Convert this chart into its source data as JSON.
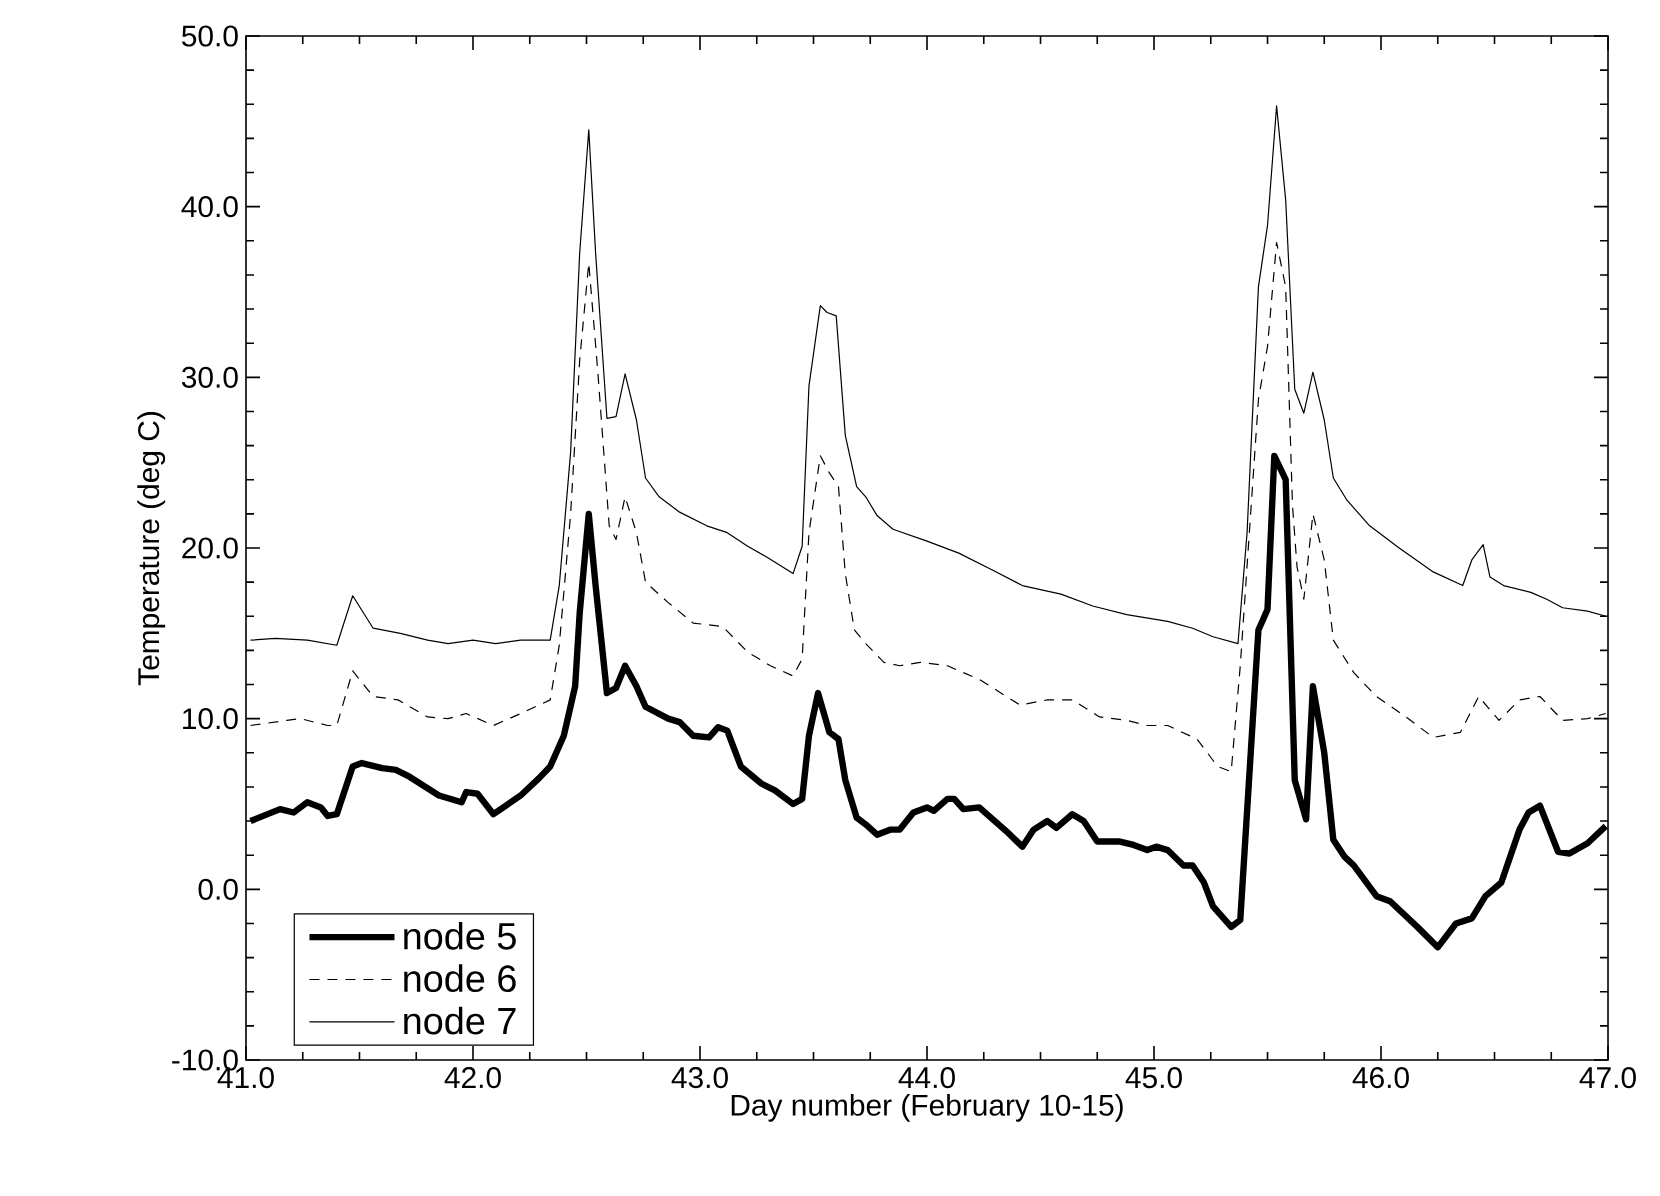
{
  "chart_data": {
    "type": "line",
    "xlabel": "Day number (February 10-15)",
    "ylabel": "Temperature (deg C)",
    "xlim": [
      41,
      47
    ],
    "ylim": [
      -10,
      50
    ],
    "xticks": [
      {
        "value": 41,
        "label": "41.0"
      },
      {
        "value": 42,
        "label": "42.0"
      },
      {
        "value": 43,
        "label": "43.0"
      },
      {
        "value": 44,
        "label": "44.0"
      },
      {
        "value": 45,
        "label": "45.0"
      },
      {
        "value": 46,
        "label": "46.0"
      },
      {
        "value": 47,
        "label": "47.0"
      }
    ],
    "yticks": [
      {
        "value": -10,
        "label": "-10.0"
      },
      {
        "value": 0,
        "label": "0.0"
      },
      {
        "value": 10,
        "label": "10.0"
      },
      {
        "value": 20,
        "label": "20.0"
      },
      {
        "value": 30,
        "label": "30.0"
      },
      {
        "value": 40,
        "label": "40.0"
      },
      {
        "value": 50,
        "label": "50.0"
      }
    ],
    "grid": false,
    "legend": "bottom left",
    "marker": "none",
    "series": [
      {
        "name": "node 5",
        "color": "#000000",
        "line_style": "solid",
        "x": [
          41.02,
          41.15,
          41.21,
          41.27,
          41.33,
          41.36,
          41.4,
          41.47,
          41.51,
          41.6,
          41.66,
          41.72,
          41.85,
          41.95,
          41.97,
          42.02,
          42.09,
          42.21,
          42.29,
          42.34,
          42.4,
          42.45,
          42.47,
          42.51,
          42.54,
          42.59,
          42.63,
          42.67,
          42.72,
          42.76,
          42.86,
          42.91,
          42.97,
          43.04,
          43.08,
          43.12,
          43.18,
          43.27,
          43.33,
          43.41,
          43.45,
          43.48,
          43.52,
          43.57,
          43.61,
          43.64,
          43.69,
          43.73,
          43.78,
          43.84,
          43.88,
          43.94,
          44.0,
          44.03,
          44.09,
          44.12,
          44.16,
          44.23,
          44.29,
          44.35,
          44.42,
          44.47,
          44.53,
          44.57,
          44.64,
          44.69,
          44.75,
          44.85,
          44.91,
          44.97,
          45.01,
          45.06,
          45.13,
          45.17,
          45.22,
          45.26,
          45.34,
          45.38,
          45.46,
          45.5,
          45.53,
          45.58,
          45.62,
          45.67,
          45.7,
          45.75,
          45.79,
          45.84,
          45.88,
          45.98,
          46.04,
          46.16,
          46.25,
          46.33,
          46.4,
          46.46,
          46.53,
          46.61,
          46.65,
          46.7,
          46.78,
          46.83,
          46.91,
          46.99
        ],
        "values": [
          4.0,
          4.7,
          4.5,
          5.1,
          4.8,
          4.3,
          4.4,
          7.2,
          7.4,
          7.1,
          7.0,
          6.6,
          5.5,
          5.1,
          5.7,
          5.6,
          4.4,
          5.5,
          6.5,
          7.2,
          9.0,
          11.9,
          16.2,
          22.0,
          17.8,
          11.5,
          11.8,
          13.1,
          11.9,
          10.7,
          10.0,
          9.8,
          9.0,
          8.9,
          9.5,
          9.3,
          7.2,
          6.2,
          5.8,
          5.0,
          5.3,
          9.0,
          11.5,
          9.2,
          8.8,
          6.4,
          4.2,
          3.8,
          3.2,
          3.5,
          3.5,
          4.5,
          4.8,
          4.6,
          5.3,
          5.3,
          4.7,
          4.8,
          4.1,
          3.4,
          2.5,
          3.5,
          4.0,
          3.6,
          4.4,
          4.0,
          2.8,
          2.8,
          2.6,
          2.3,
          2.5,
          2.3,
          1.4,
          1.4,
          0.4,
          -1.0,
          -2.2,
          -1.8,
          15.2,
          16.4,
          25.4,
          24.0,
          6.4,
          4.1,
          11.9,
          8.0,
          2.9,
          1.9,
          1.4,
          -0.4,
          -0.7,
          -2.2,
          -3.4,
          -2.0,
          -1.7,
          -0.4,
          0.4,
          3.5,
          4.5,
          4.9,
          2.2,
          2.1,
          2.7,
          3.7
        ]
      },
      {
        "name": "node 6",
        "color": "#000000",
        "line_style": "dashed",
        "x": [
          41.02,
          41.18,
          41.24,
          41.36,
          41.4,
          41.47,
          41.56,
          41.67,
          41.8,
          41.89,
          41.97,
          42.09,
          42.21,
          42.34,
          42.38,
          42.43,
          42.47,
          42.51,
          42.55,
          42.6,
          42.63,
          42.67,
          42.72,
          42.76,
          42.86,
          42.97,
          43.1,
          43.21,
          43.31,
          43.41,
          43.45,
          43.48,
          43.53,
          43.57,
          43.61,
          43.64,
          43.68,
          43.73,
          43.81,
          43.88,
          43.97,
          44.09,
          44.23,
          44.41,
          44.53,
          44.64,
          44.76,
          44.88,
          44.97,
          45.06,
          45.19,
          45.28,
          45.34,
          45.38,
          45.46,
          45.5,
          45.54,
          45.58,
          45.61,
          45.63,
          45.66,
          45.7,
          45.75,
          45.79,
          45.88,
          45.98,
          46.11,
          46.23,
          46.35,
          46.43,
          46.52,
          46.61,
          46.7,
          46.8,
          46.91,
          46.99
        ],
        "values": [
          9.6,
          9.9,
          10.0,
          9.6,
          9.6,
          12.8,
          11.3,
          11.1,
          10.1,
          10.0,
          10.3,
          9.6,
          10.3,
          11.1,
          14.3,
          22.0,
          31.0,
          36.7,
          30.3,
          21.3,
          20.5,
          23.0,
          20.9,
          18.0,
          16.8,
          15.6,
          15.4,
          13.9,
          13.1,
          12.5,
          13.5,
          20.9,
          25.4,
          24.4,
          23.6,
          18.5,
          15.2,
          14.4,
          13.3,
          13.1,
          13.3,
          13.1,
          12.3,
          10.8,
          11.1,
          11.1,
          10.1,
          9.9,
          9.6,
          9.6,
          8.8,
          7.2,
          6.9,
          13.1,
          28.7,
          31.8,
          37.9,
          35.3,
          22.5,
          18.9,
          17.0,
          22.0,
          19.3,
          14.6,
          12.7,
          11.3,
          10.1,
          8.9,
          9.2,
          11.3,
          9.9,
          11.1,
          11.3,
          9.9,
          10.0,
          10.3
        ]
      },
      {
        "name": "node 7",
        "color": "#000000",
        "line_style": "solid",
        "x": [
          41.02,
          41.13,
          41.27,
          41.4,
          41.47,
          41.56,
          41.68,
          41.8,
          41.89,
          42.0,
          42.1,
          42.21,
          42.34,
          42.38,
          42.43,
          42.47,
          42.51,
          42.54,
          42.59,
          42.63,
          42.67,
          42.72,
          42.76,
          42.82,
          42.91,
          43.03,
          43.12,
          43.21,
          43.29,
          43.41,
          43.45,
          43.48,
          43.53,
          43.56,
          43.6,
          43.64,
          43.69,
          43.73,
          43.78,
          43.85,
          44.0,
          44.14,
          44.29,
          44.42,
          44.59,
          44.73,
          44.88,
          44.97,
          45.06,
          45.17,
          45.26,
          45.37,
          45.41,
          45.46,
          45.5,
          45.54,
          45.58,
          45.62,
          45.66,
          45.7,
          45.75,
          45.79,
          45.85,
          45.95,
          46.08,
          46.23,
          46.36,
          46.4,
          46.45,
          46.48,
          46.54,
          46.66,
          46.73,
          46.8,
          46.91,
          46.99
        ],
        "values": [
          14.6,
          14.7,
          14.6,
          14.3,
          17.2,
          15.3,
          15.0,
          14.6,
          14.4,
          14.6,
          14.4,
          14.6,
          14.6,
          17.8,
          25.6,
          37.3,
          44.5,
          37.3,
          27.6,
          27.7,
          30.2,
          27.5,
          24.1,
          23.0,
          22.1,
          21.3,
          20.9,
          20.1,
          19.5,
          18.5,
          20.1,
          29.5,
          34.2,
          33.8,
          33.6,
          26.6,
          23.6,
          23.0,
          21.9,
          21.1,
          20.4,
          19.7,
          18.7,
          17.8,
          17.3,
          16.6,
          16.1,
          15.9,
          15.7,
          15.3,
          14.8,
          14.4,
          20.9,
          35.3,
          38.9,
          45.9,
          40.4,
          29.3,
          27.9,
          30.3,
          27.5,
          24.1,
          22.8,
          21.3,
          20.0,
          18.6,
          17.8,
          19.3,
          20.2,
          18.3,
          17.8,
          17.4,
          17.0,
          16.5,
          16.3,
          16.0
        ]
      }
    ]
  }
}
